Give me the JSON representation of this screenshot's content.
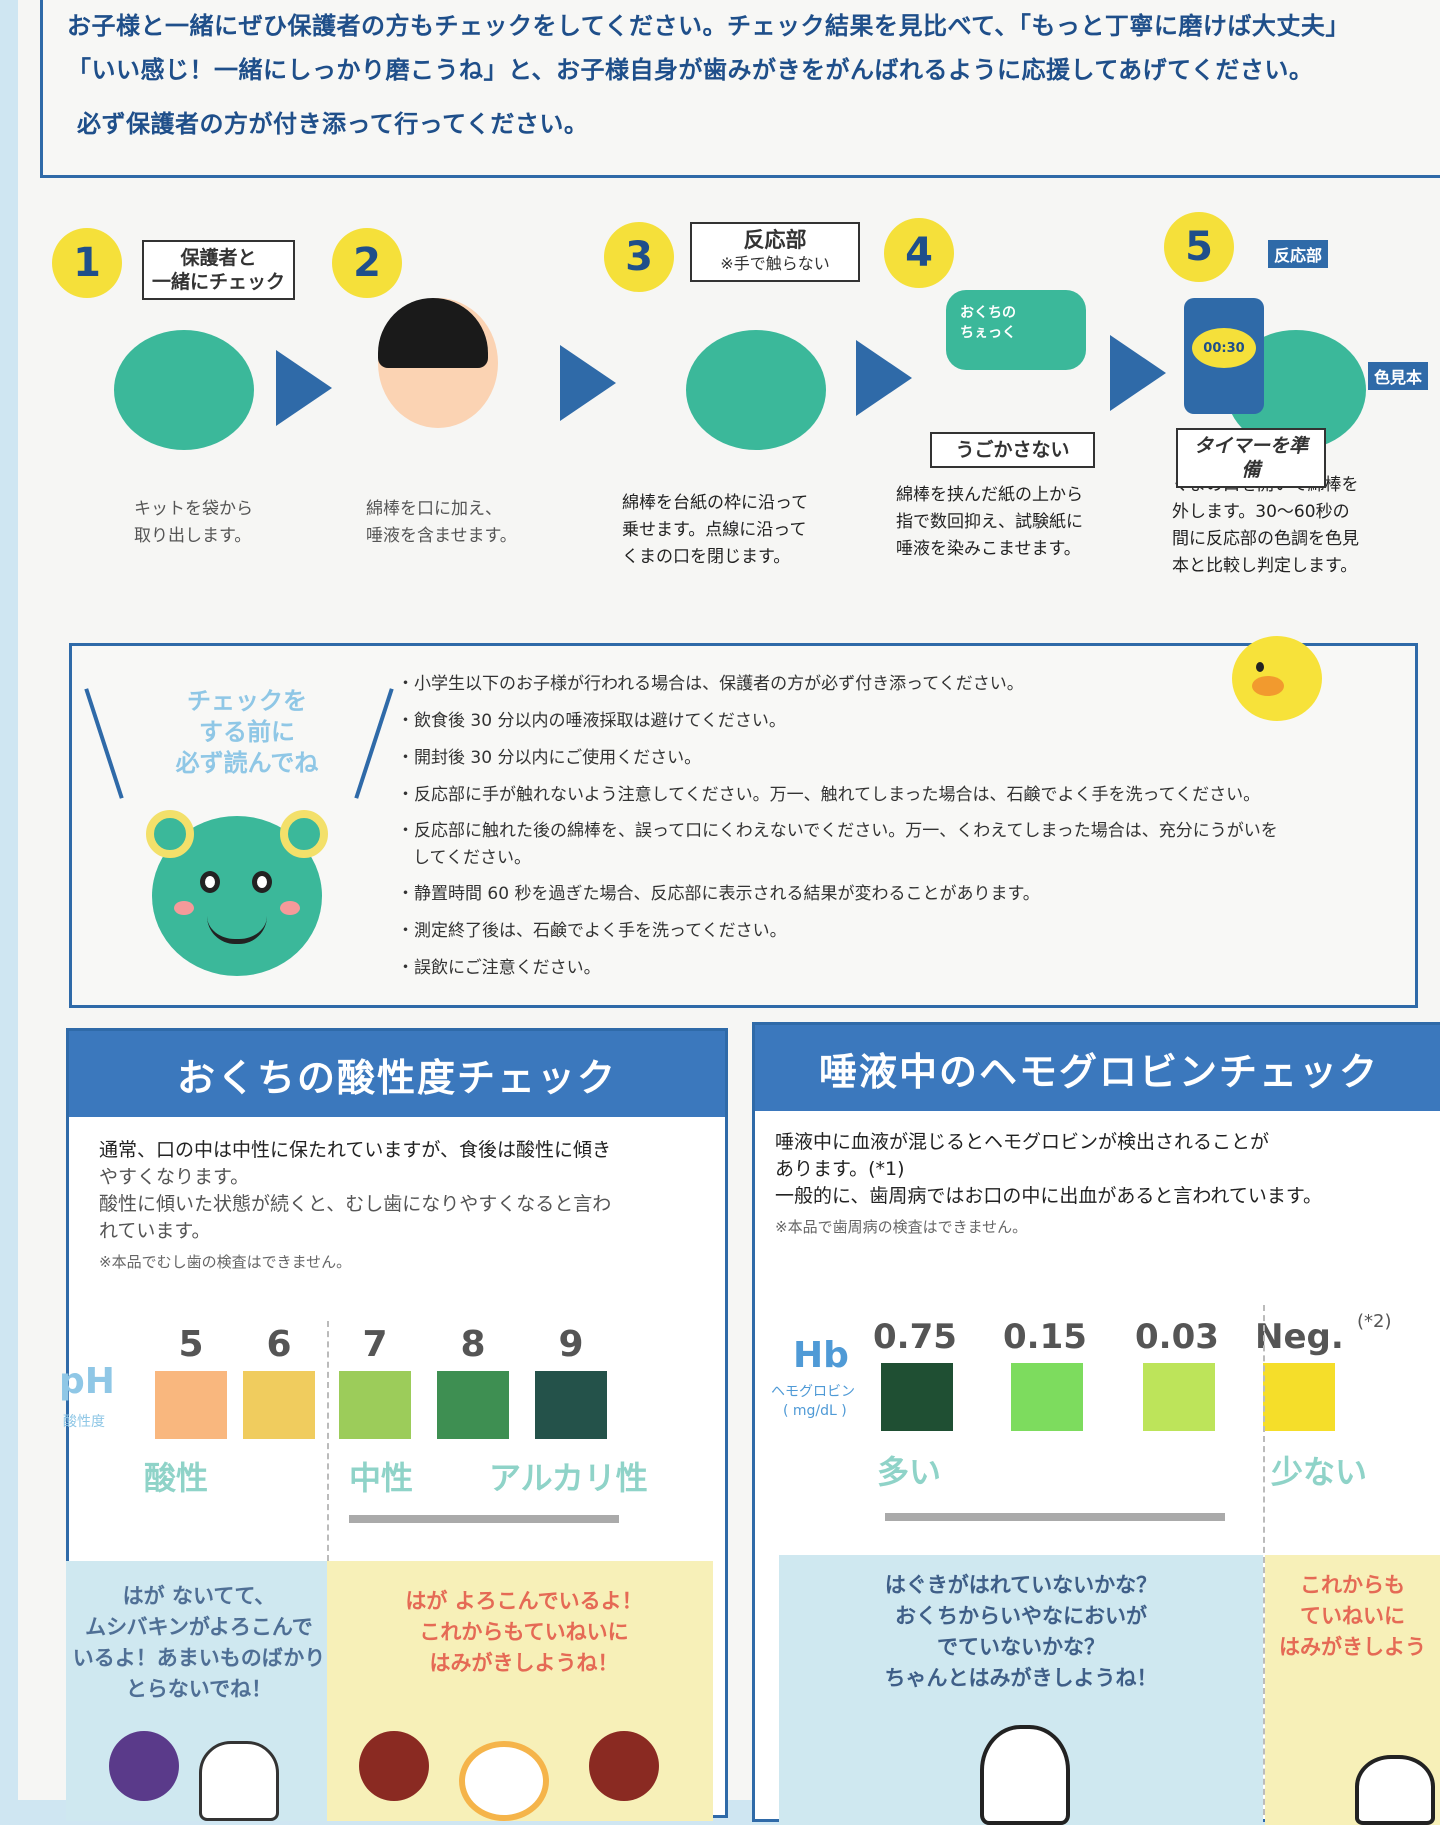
{
  "intro": {
    "lines": [
      "お子様と一緒にぜひ保護者の方もチェックをしてください。チェック結果を見比べて、「もっと丁寧に磨けば大丈夫」",
      "「いい感じ！一緒にしっかり磨こうね」と、お子様自身が歯みがきをがんばれるように応援してあげてください。",
      "必ず保護者の方が付き添って行ってください。"
    ]
  },
  "steps": [
    {
      "num": "1",
      "tag": "保護者と\n一緒にチェック",
      "caption": [
        "キットを袋から",
        "取り出します。"
      ]
    },
    {
      "num": "2",
      "caption": [
        "綿棒を口に加え、",
        "唾液を含ませます。"
      ]
    },
    {
      "num": "3",
      "tag": "反応部",
      "tag_sub": "※手で触らない",
      "caption": [
        "綿棒を台紙の枠に沿って",
        "乗せます。点線に沿って",
        "くまの口を閉じます。"
      ]
    },
    {
      "num": "4",
      "tag": "うごかさない",
      "card": "おくちの\nちぇっく",
      "caption": [
        "綿棒を挟んだ紙の上から",
        "指で数回抑え、試験紙に",
        "唾液を染みこませます。"
      ]
    },
    {
      "num": "5",
      "tag": "タイマーを準備",
      "timer": "00:30",
      "label_a": "反応部",
      "label_b": "色見本",
      "caption": [
        "くまの口を開いて綿棒を",
        "外します。30〜60秒の",
        "間に反応部の色調を色見",
        "本と比較し判定します。"
      ]
    }
  ],
  "caution": {
    "heading": [
      "チェックを",
      "する前に",
      "必ず読んでね"
    ],
    "items": [
      "小学生以下のお子様が行われる場合は、保護者の方が必ず付き添ってください。",
      "飲食後 30 分以内の唾液採取は避けてください。",
      "開封後 30 分以内にご使用ください。",
      "反応部に手が触れないよう注意してください。万一、触れてしまった場合は、石鹸でよく手を洗ってください。",
      "反応部に触れた後の綿棒を、誤って口にくわえないでください。万一、くわえてしまった場合は、充分にうがいを\nしてください。",
      "静置時間 60 秒を過ぎた場合、反応部に表示される結果が変わることがあります。",
      "測定終了後は、石鹸でよく手を洗ってください。",
      "誤飲にご注意ください。"
    ]
  },
  "ph": {
    "title": "おくちの酸性度チェック",
    "desc": [
      "通常、口の中は中性に保たれていますが、食後は酸性に傾き",
      "やすくなります。",
      "酸性に傾いた状態が続くと、むし歯になりやすくなると言わ",
      "れています。"
    ],
    "note": "※本品でむし歯の検査はできません。",
    "scale_label": "pH",
    "scale_sub": "酸性度",
    "swatches": [
      {
        "label": "5",
        "color": "#f9b77e"
      },
      {
        "label": "6",
        "color": "#f0cc5e"
      },
      {
        "label": "7",
        "color": "#9ccc5a"
      },
      {
        "label": "8",
        "color": "#3e8f52"
      },
      {
        "label": "9",
        "color": "#24524a"
      }
    ],
    "cats": [
      "酸性",
      "中性",
      "アルカリ性"
    ],
    "bubbles": [
      {
        "text": "はが ないてて、\nムシバキンがよろこんで\nいるよ！あまいものばかり\nとらないでね！",
        "color": "#4f6f95",
        "bg": "#cfe8f0"
      },
      {
        "text": "はが よろこんでいるよ！\nこれからもていねいに\nはみがきしようね！",
        "color": "#e56a55",
        "bg": "#f7f0b8"
      }
    ]
  },
  "hb": {
    "title": "唾液中のヘモグロビンチェック",
    "desc": [
      "唾液中に血液が混じるとヘモグロビンが検出されることが",
      "あります。(*1)",
      "一般的に、歯周病ではお口の中に出血があると言われています。"
    ],
    "note": "※本品で歯周病の検査はできません。",
    "scale_label": "Hb",
    "scale_sub": "ヘモグロビン",
    "scale_unit": "( mg/dL )",
    "swatches": [
      {
        "label": "0.75",
        "color": "#1f4f33"
      },
      {
        "label": "0.15",
        "color": "#7ddc5e"
      },
      {
        "label": "0.03",
        "color": "#bde45a"
      },
      {
        "label": "Neg.",
        "sup": "(*2)",
        "color": "#f5de2a"
      }
    ],
    "cats": [
      "多い",
      "少ない"
    ],
    "bubbles": [
      {
        "text": "はぐきがはれていないかな？\nおくちからいやなにおいが\nでていないかな？\nちゃんとはみがきしようね！",
        "color": "#3f5f88",
        "bg": "#cfe8f0"
      },
      {
        "text": "これからも\nていねいに\nはみがきしよう",
        "color": "#e56a55",
        "bg": "#f7f0b8"
      }
    ]
  },
  "colors": {
    "accent": "#2f6aa8",
    "header": "#3b78bd",
    "bear": "#3bb89a",
    "yellow": "#f5e03a"
  }
}
